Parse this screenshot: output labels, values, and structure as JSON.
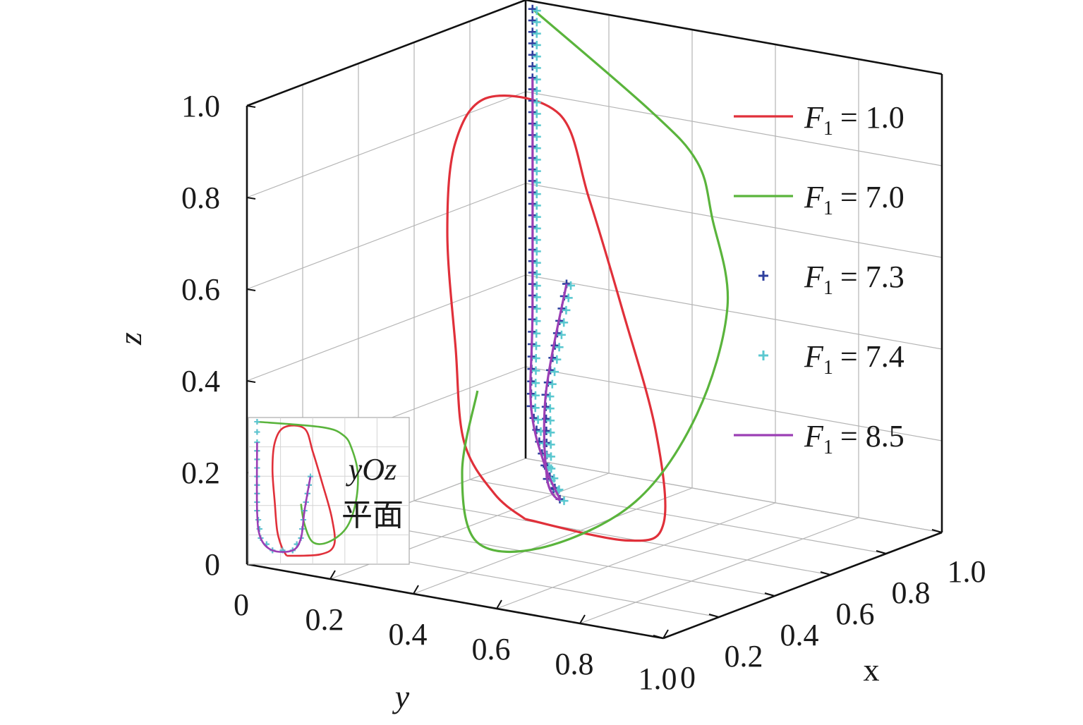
{
  "chart_data": {
    "type": "line",
    "plot_kind": "3d-trajectory",
    "axes": {
      "x": {
        "label": "x",
        "range": [
          0,
          1.0
        ],
        "ticks": [
          "0",
          "0.2",
          "0.4",
          "0.6",
          "0.8",
          "1.0"
        ]
      },
      "y": {
        "label": "y",
        "range": [
          0,
          1.0
        ],
        "ticks": [
          "0",
          "0.2",
          "0.4",
          "0.6",
          "0.8",
          "1.0"
        ]
      },
      "z": {
        "label": "z",
        "range": [
          0,
          1.0
        ],
        "ticks": [
          "0",
          "0.2",
          "0.4",
          "0.6",
          "0.8",
          "1.0"
        ]
      }
    },
    "grid": true,
    "legend_position": "right",
    "series": [
      {
        "name": "F1 = 1.0",
        "name_symbol": "F",
        "name_sub": "1",
        "name_value": "= 1.0",
        "style": "line",
        "color": "#e0303a",
        "points": [
          [
            0.55,
            0.3,
            0.02
          ],
          [
            0.5,
            0.58,
            0.03
          ],
          [
            0.45,
            0.7,
            0.1
          ],
          [
            0.45,
            0.68,
            0.3
          ],
          [
            0.45,
            0.6,
            0.55
          ],
          [
            0.45,
            0.52,
            0.78
          ],
          [
            0.45,
            0.45,
            0.95
          ],
          [
            0.45,
            0.28,
            0.96
          ],
          [
            0.45,
            0.2,
            0.85
          ],
          [
            0.45,
            0.18,
            0.65
          ],
          [
            0.45,
            0.2,
            0.4
          ],
          [
            0.45,
            0.22,
            0.2
          ],
          [
            0.5,
            0.26,
            0.08
          ],
          [
            0.55,
            0.3,
            0.02
          ]
        ]
      },
      {
        "name": "F1 = 7.0",
        "name_symbol": "F",
        "name_sub": "1",
        "name_value": "= 7.0",
        "style": "line",
        "color": "#5ab43c",
        "points": [
          [
            0.95,
            0.05,
            1.0
          ],
          [
            0.55,
            0.6,
            0.96
          ],
          [
            0.45,
            0.78,
            0.9
          ],
          [
            0.4,
            0.85,
            0.8
          ],
          [
            0.38,
            0.9,
            0.62
          ],
          [
            0.3,
            0.88,
            0.4
          ],
          [
            0.2,
            0.8,
            0.22
          ],
          [
            0.1,
            0.65,
            0.12
          ],
          [
            0.05,
            0.52,
            0.12
          ],
          [
            0.1,
            0.45,
            0.25
          ],
          [
            0.2,
            0.42,
            0.4
          ]
        ]
      },
      {
        "name": "F1 = 7.3",
        "name_symbol": "F",
        "name_sub": "1",
        "name_value": "= 7.3",
        "style": "marker",
        "marker": "+",
        "color": "#2e3f9e",
        "points": [
          [
            0.95,
            0.05,
            1.0
          ],
          [
            0.95,
            0.05,
            0.85
          ],
          [
            0.95,
            0.05,
            0.6
          ],
          [
            0.95,
            0.05,
            0.35
          ],
          [
            0.9,
            0.08,
            0.15
          ],
          [
            0.8,
            0.18,
            0.06
          ],
          [
            0.6,
            0.35,
            0.06
          ],
          [
            0.45,
            0.42,
            0.15
          ],
          [
            0.4,
            0.45,
            0.35
          ],
          [
            0.4,
            0.5,
            0.6
          ]
        ]
      },
      {
        "name": "F1 = 7.4",
        "name_symbol": "F",
        "name_sub": "1",
        "name_value": "= 7.4",
        "style": "marker",
        "marker": "+",
        "color": "#5bc8d0",
        "points": [
          [
            0.95,
            0.05,
            1.0
          ],
          [
            0.95,
            0.05,
            0.85
          ],
          [
            0.95,
            0.05,
            0.6
          ],
          [
            0.95,
            0.05,
            0.35
          ],
          [
            0.9,
            0.08,
            0.15
          ],
          [
            0.8,
            0.18,
            0.06
          ],
          [
            0.6,
            0.35,
            0.06
          ],
          [
            0.45,
            0.42,
            0.15
          ],
          [
            0.4,
            0.45,
            0.35
          ],
          [
            0.4,
            0.5,
            0.6
          ]
        ]
      },
      {
        "name": "F1 = 8.5",
        "name_symbol": "F",
        "name_sub": "1",
        "name_value": "= 8.5",
        "style": "line",
        "color": "#9b3fb5",
        "points": [
          [
            0.95,
            0.05,
            0.85
          ],
          [
            0.95,
            0.05,
            0.35
          ],
          [
            0.9,
            0.08,
            0.15
          ],
          [
            0.8,
            0.18,
            0.06
          ],
          [
            0.6,
            0.35,
            0.06
          ],
          [
            0.45,
            0.42,
            0.15
          ],
          [
            0.4,
            0.45,
            0.35
          ],
          [
            0.4,
            0.5,
            0.6
          ]
        ]
      }
    ],
    "inset": {
      "label_line1": "yOz",
      "label_line2": "平面",
      "plane": "yOz"
    }
  }
}
